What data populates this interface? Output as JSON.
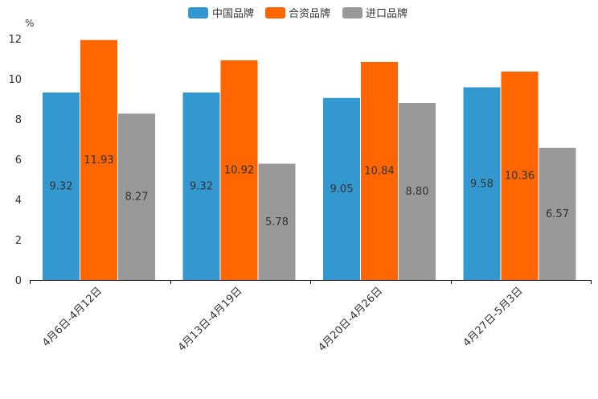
{
  "chart_data": {
    "type": "bar",
    "unit": "%",
    "categories": [
      "4月6日-4月12日",
      "4月13日-4月19日",
      "4月20日-4月26日",
      "4月27日-5月3日"
    ],
    "series": [
      {
        "name": "中国品牌",
        "color": "#3398d0",
        "values": [
          9.32,
          9.32,
          9.05,
          9.58
        ],
        "labels": [
          "9.32",
          "9.32",
          "9.05",
          "9.58"
        ]
      },
      {
        "name": "合资品牌",
        "color": "#ff6600",
        "values": [
          11.93,
          10.92,
          10.84,
          10.36
        ],
        "labels": [
          "11.93",
          "10.92",
          "10.84",
          "10.36"
        ]
      },
      {
        "name": "进口品牌",
        "color": "#999999",
        "values": [
          8.27,
          5.78,
          8.8,
          6.57
        ],
        "labels": [
          "8.27",
          "5.78",
          "8.80",
          "6.57"
        ]
      }
    ],
    "yticks": [
      "0",
      "2",
      "4",
      "6",
      "8",
      "10",
      "12"
    ],
    "ylim": [
      0,
      12
    ],
    "legend_position": "top-center",
    "grid": false
  }
}
